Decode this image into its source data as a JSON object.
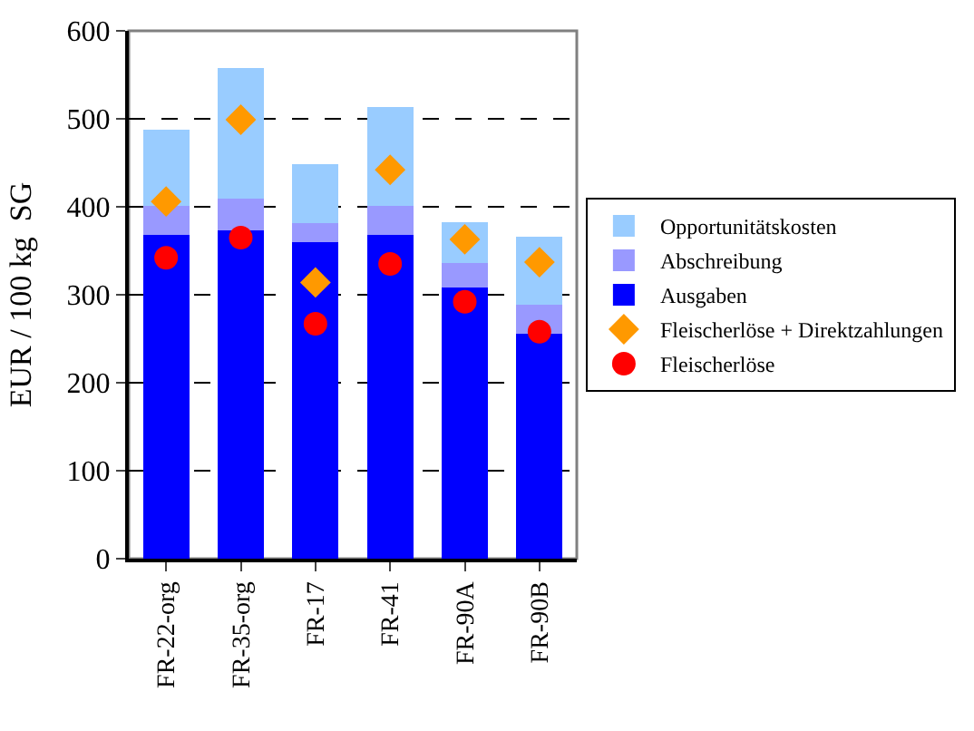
{
  "chart_data": {
    "type": "bar",
    "stacked": true,
    "ylabel": "EUR / 100 kg  SG",
    "categories": [
      "FR-22-org",
      "FR-35-org",
      "FR-17",
      "FR-41",
      "FR-90A",
      "FR-90B"
    ],
    "series": [
      {
        "name": "Ausgaben",
        "color": "#0000ff",
        "values": [
          368,
          373,
          360,
          368,
          308,
          256
        ]
      },
      {
        "name": "Abschreibung",
        "color": "#9999ff",
        "values": [
          33,
          36,
          21,
          33,
          28,
          33
        ]
      },
      {
        "name": "Opportunitätskosten",
        "color": "#99ccff",
        "values": [
          87,
          149,
          67,
          112,
          47,
          77
        ]
      },
      {
        "name": "Fleischerlöse + Direktzahlungen",
        "type": "scatter",
        "marker": "diamond",
        "color": "#ff9900",
        "values": [
          406,
          499,
          314,
          442,
          363,
          337
        ]
      },
      {
        "name": "Fleischerlöse",
        "type": "scatter",
        "marker": "circle",
        "color": "#ff0000",
        "values": [
          342,
          365,
          267,
          335,
          292,
          258
        ]
      }
    ],
    "ylim": [
      0,
      600
    ],
    "yticks": [
      0,
      100,
      200,
      300,
      400,
      500,
      600
    ],
    "grid": "y",
    "legend": "right"
  }
}
